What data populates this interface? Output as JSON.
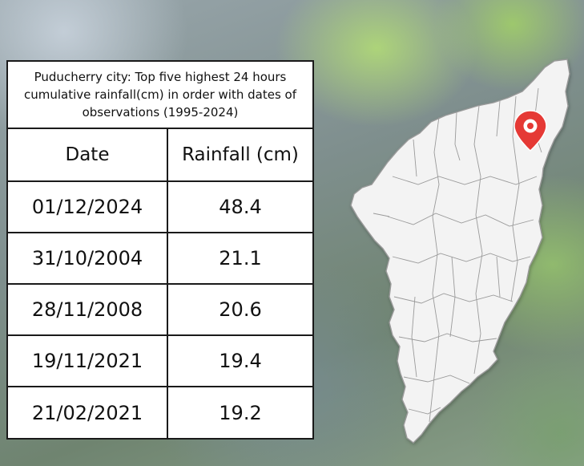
{
  "table": {
    "caption": "Puducherry city: Top five highest 24 hours cumulative rainfall(cm) in order with dates of observations (1995-2024)",
    "headers": {
      "date": "Date",
      "rainfall": "Rainfall (cm)"
    },
    "rows": [
      {
        "date": "01/12/2024",
        "rainfall": "48.4"
      },
      {
        "date": "31/10/2004",
        "rainfall": "21.1"
      },
      {
        "date": "28/11/2008",
        "rainfall": "20.6"
      },
      {
        "date": "19/11/2021",
        "rainfall": "19.4"
      },
      {
        "date": "21/02/2021",
        "rainfall": "19.2"
      }
    ]
  },
  "map": {
    "fill_color": "#f3f3f3",
    "border_color": "#9a9a9a",
    "pin_color": "#e53935",
    "icon": "location-pin-icon"
  }
}
